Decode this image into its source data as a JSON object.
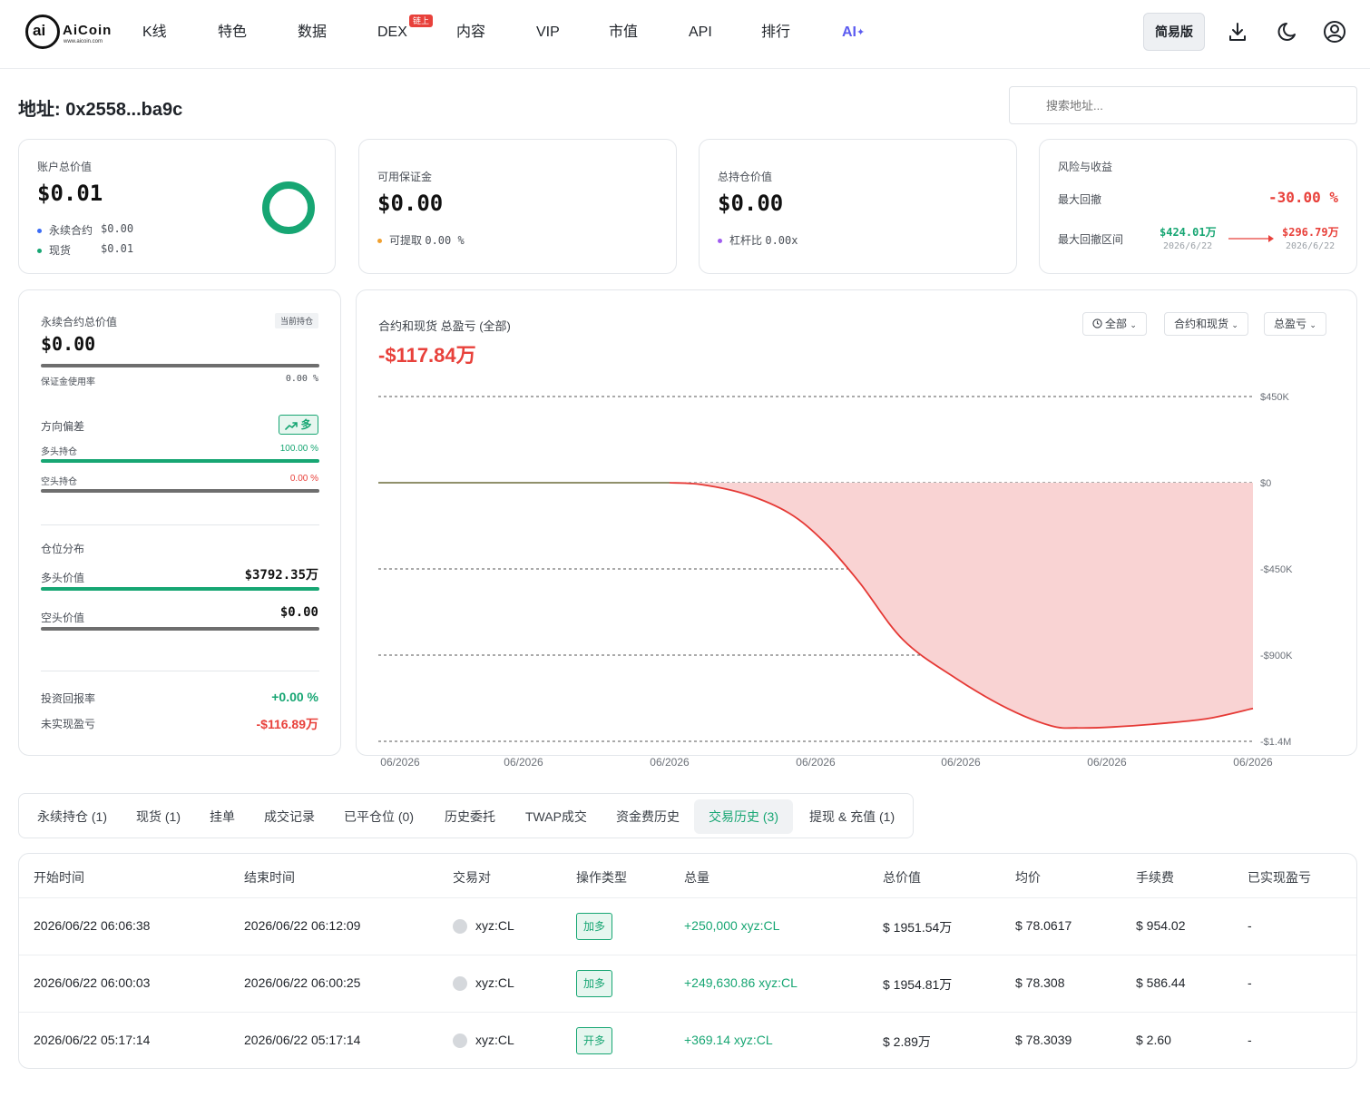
{
  "nav": {
    "logo_text": "AiCoin",
    "logo_sub": "www.aicoin.com",
    "items": [
      "K线",
      "特色",
      "数据",
      "DEX",
      "内容",
      "VIP",
      "市值",
      "API",
      "排行",
      "AI"
    ],
    "dex_badge": "链上",
    "simple_label": "简易版"
  },
  "title": "地址: 0x2558...ba9c",
  "search": {
    "placeholder": "搜索地址..."
  },
  "cards": {
    "account": {
      "label": "账户总价值",
      "value": "$0.01",
      "perp_label": "永续合约",
      "perp_value": "$0.00",
      "spot_label": "现货",
      "spot_value": "$0.01"
    },
    "margin": {
      "label": "可用保证金",
      "value": "$0.00",
      "withdraw_label": "可提取",
      "withdraw_value": "0.00 %"
    },
    "position": {
      "label": "总持仓价值",
      "value": "$0.00",
      "leverage_label": "杠杆比",
      "leverage_value": "0.00x"
    },
    "risk": {
      "label": "风险与收益",
      "drawdown_label": "最大回撤",
      "drawdown_value": "-30.00 %",
      "range_label": "最大回撤区间",
      "from_value": "$424.01万",
      "from_date": "2026/6/22",
      "to_value": "$296.79万",
      "to_date": "2026/6/22"
    }
  },
  "perp_panel": {
    "label": "永续合约总价值",
    "tag": "当前持仓",
    "value": "$0.00",
    "margin_usage_label": "保证金使用率",
    "margin_usage_value": "0.00 %",
    "direction_label": "方向偏差",
    "direction_tag": "多",
    "long_pos_label": "多头持仓",
    "long_pos_value": "100.00 %",
    "short_pos_label": "空头持仓",
    "short_pos_value": "0.00 %",
    "dist_label": "仓位分布",
    "long_value_label": "多头价值",
    "long_value": "$3792.35万",
    "short_value_label": "空头价值",
    "short_value": "$0.00",
    "roi_label": "投资回报率",
    "roi_value": "+0.00 %",
    "unrealized_label": "未实现盈亏",
    "unrealized_value": "-$116.89万"
  },
  "pnl_chart": {
    "title": "合约和现货 总盈亏 (全部)",
    "value": "-$117.84万",
    "filters": [
      "全部",
      "合约和现货",
      "总盈亏"
    ]
  },
  "chart_data": {
    "type": "area",
    "title": "合约和现货 总盈亏 (全部)",
    "x_tick_labels": [
      "06/2026",
      "06/2026",
      "06/2026",
      "06/2026",
      "06/2026",
      "06/2026",
      "06/2026"
    ],
    "y_tick_labels": [
      "$450K",
      "$0",
      "-$450K",
      "-$900K",
      "-$1.4M"
    ],
    "y_ticks": [
      450000,
      0,
      -450000,
      -900000,
      -1350000
    ],
    "ylim": [
      -1350000,
      450000
    ],
    "x": [
      0,
      0.1,
      0.2,
      0.3,
      0.333,
      0.37,
      0.42,
      0.47,
      0.51,
      0.55,
      0.6,
      0.66,
      0.72,
      0.77,
      0.8,
      0.84,
      0.9,
      0.95,
      1.0
    ],
    "series": [
      {
        "values": [
          0,
          0,
          0,
          0,
          0,
          -10000,
          -60000,
          -160000,
          -310000,
          -520000,
          -820000,
          -1020000,
          -1180000,
          -1270000,
          -1280000,
          -1275000,
          -1255000,
          -1230000,
          -1178400
        ]
      }
    ],
    "grid": true,
    "colors": {
      "line": "#e53935",
      "fill": "#f9d3d3",
      "flat": "#6b6b3a"
    }
  },
  "tabs": [
    "永续持仓 (1)",
    "现货 (1)",
    "挂单",
    "成交记录",
    "已平仓位 (0)",
    "历史委托",
    "TWAP成交",
    "资金费历史",
    "交易历史 (3)",
    "提现 & 充值 (1)"
  ],
  "active_tab": 8,
  "table": {
    "headers": [
      "开始时间",
      "结束时间",
      "交易对",
      "操作类型",
      "总量",
      "总价值",
      "均价",
      "手续费",
      "已实现盈亏"
    ],
    "rows": [
      [
        "2026/06/22 06:06:38",
        "2026/06/22 06:12:09",
        "xyz:CL",
        "加多",
        "+250,000 xyz:CL",
        "$ 1951.54万",
        "$ 78.0617",
        "$ 954.02",
        "-"
      ],
      [
        "2026/06/22 06:00:03",
        "2026/06/22 06:00:25",
        "xyz:CL",
        "加多",
        "+249,630.86 xyz:CL",
        "$ 1954.81万",
        "$ 78.308",
        "$ 586.44",
        "-"
      ],
      [
        "2026/06/22 05:17:14",
        "2026/06/22 05:17:14",
        "xyz:CL",
        "开多",
        "+369.14 xyz:CL",
        "$ 2.89万",
        "$ 78.3039",
        "$ 2.60",
        "-"
      ]
    ]
  },
  "colors": {
    "green": "#17a673",
    "red": "#e8413b",
    "blue": "#3b6cf6",
    "orange": "#f0a030",
    "purple": "#a05cf0"
  }
}
